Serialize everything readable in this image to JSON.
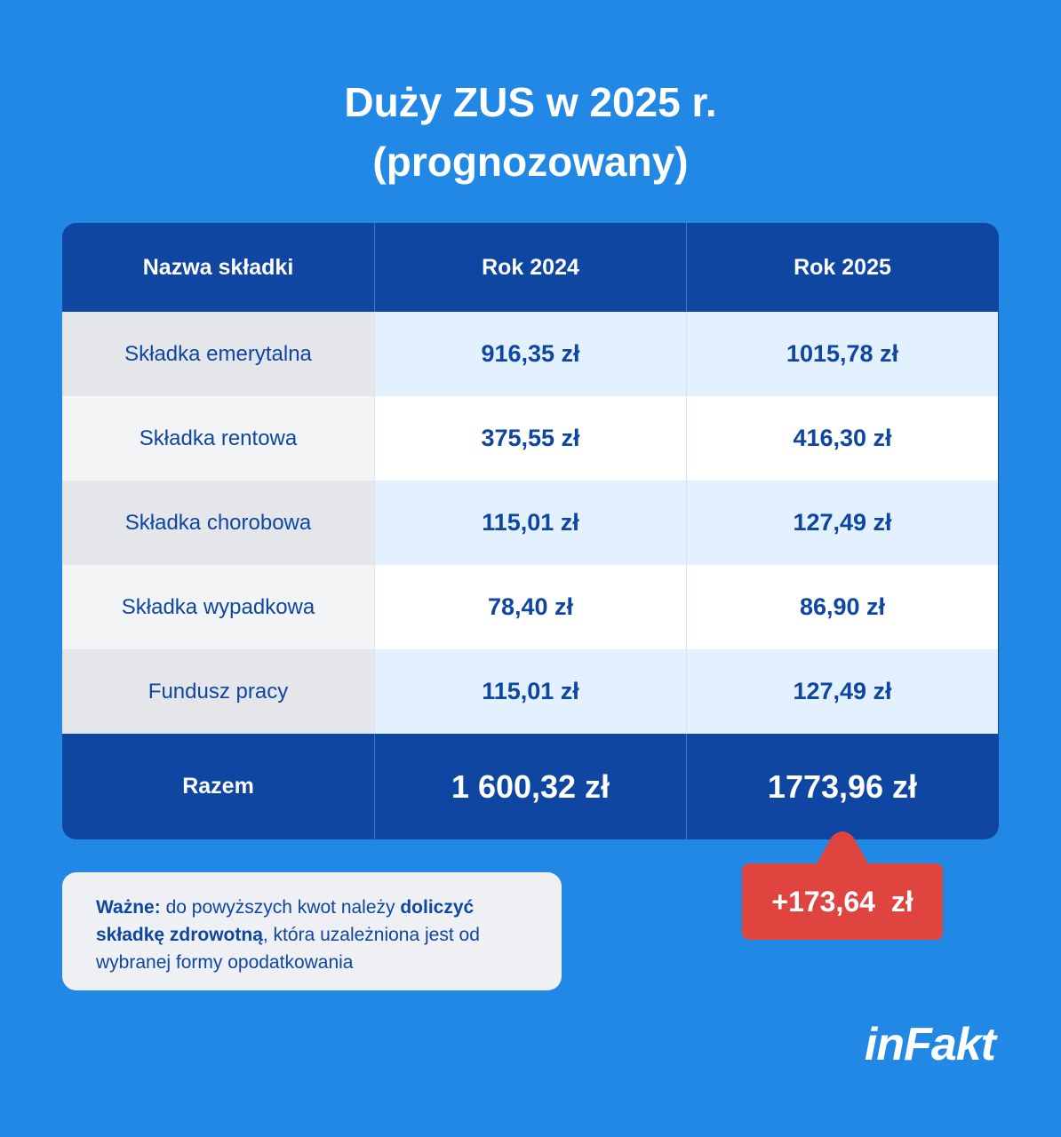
{
  "header": {
    "title_lines": [
      "Duży ZUS w 2025 r.",
      "(prognozowany)"
    ]
  },
  "table": {
    "columns": [
      "Nazwa składki",
      "Rok 2024",
      "Rok 2025"
    ],
    "rows": [
      [
        "Składka emerytalna",
        "916,35 zł",
        "1015,78 zł"
      ],
      [
        "Składka rentowa",
        "375,55 zł",
        "416,30 zł"
      ],
      [
        "Składka chorobowa",
        "115,01 zł",
        "127,49 zł"
      ],
      [
        "Składka wypadkowa",
        "78,40 zł",
        "86,90 zł"
      ],
      [
        "Fundusz pracy",
        "115,01 zł",
        "127,49 zł"
      ]
    ],
    "total": [
      "Razem",
      "1 600,32 zł",
      "1773,96 zł"
    ]
  },
  "badge": "+173,64  zł",
  "note": {
    "parts": [
      {
        "text": "Ważne:",
        "bold": true
      },
      {
        "text": " do powyższych kwot należy ",
        "bold": false
      },
      {
        "text": "doliczyć składkę zdrowotną",
        "bold": true
      },
      {
        "text": ", która uzależniona jest od wybranej formy opodatkowania",
        "bold": false
      }
    ]
  },
  "logo": "inFakt"
}
